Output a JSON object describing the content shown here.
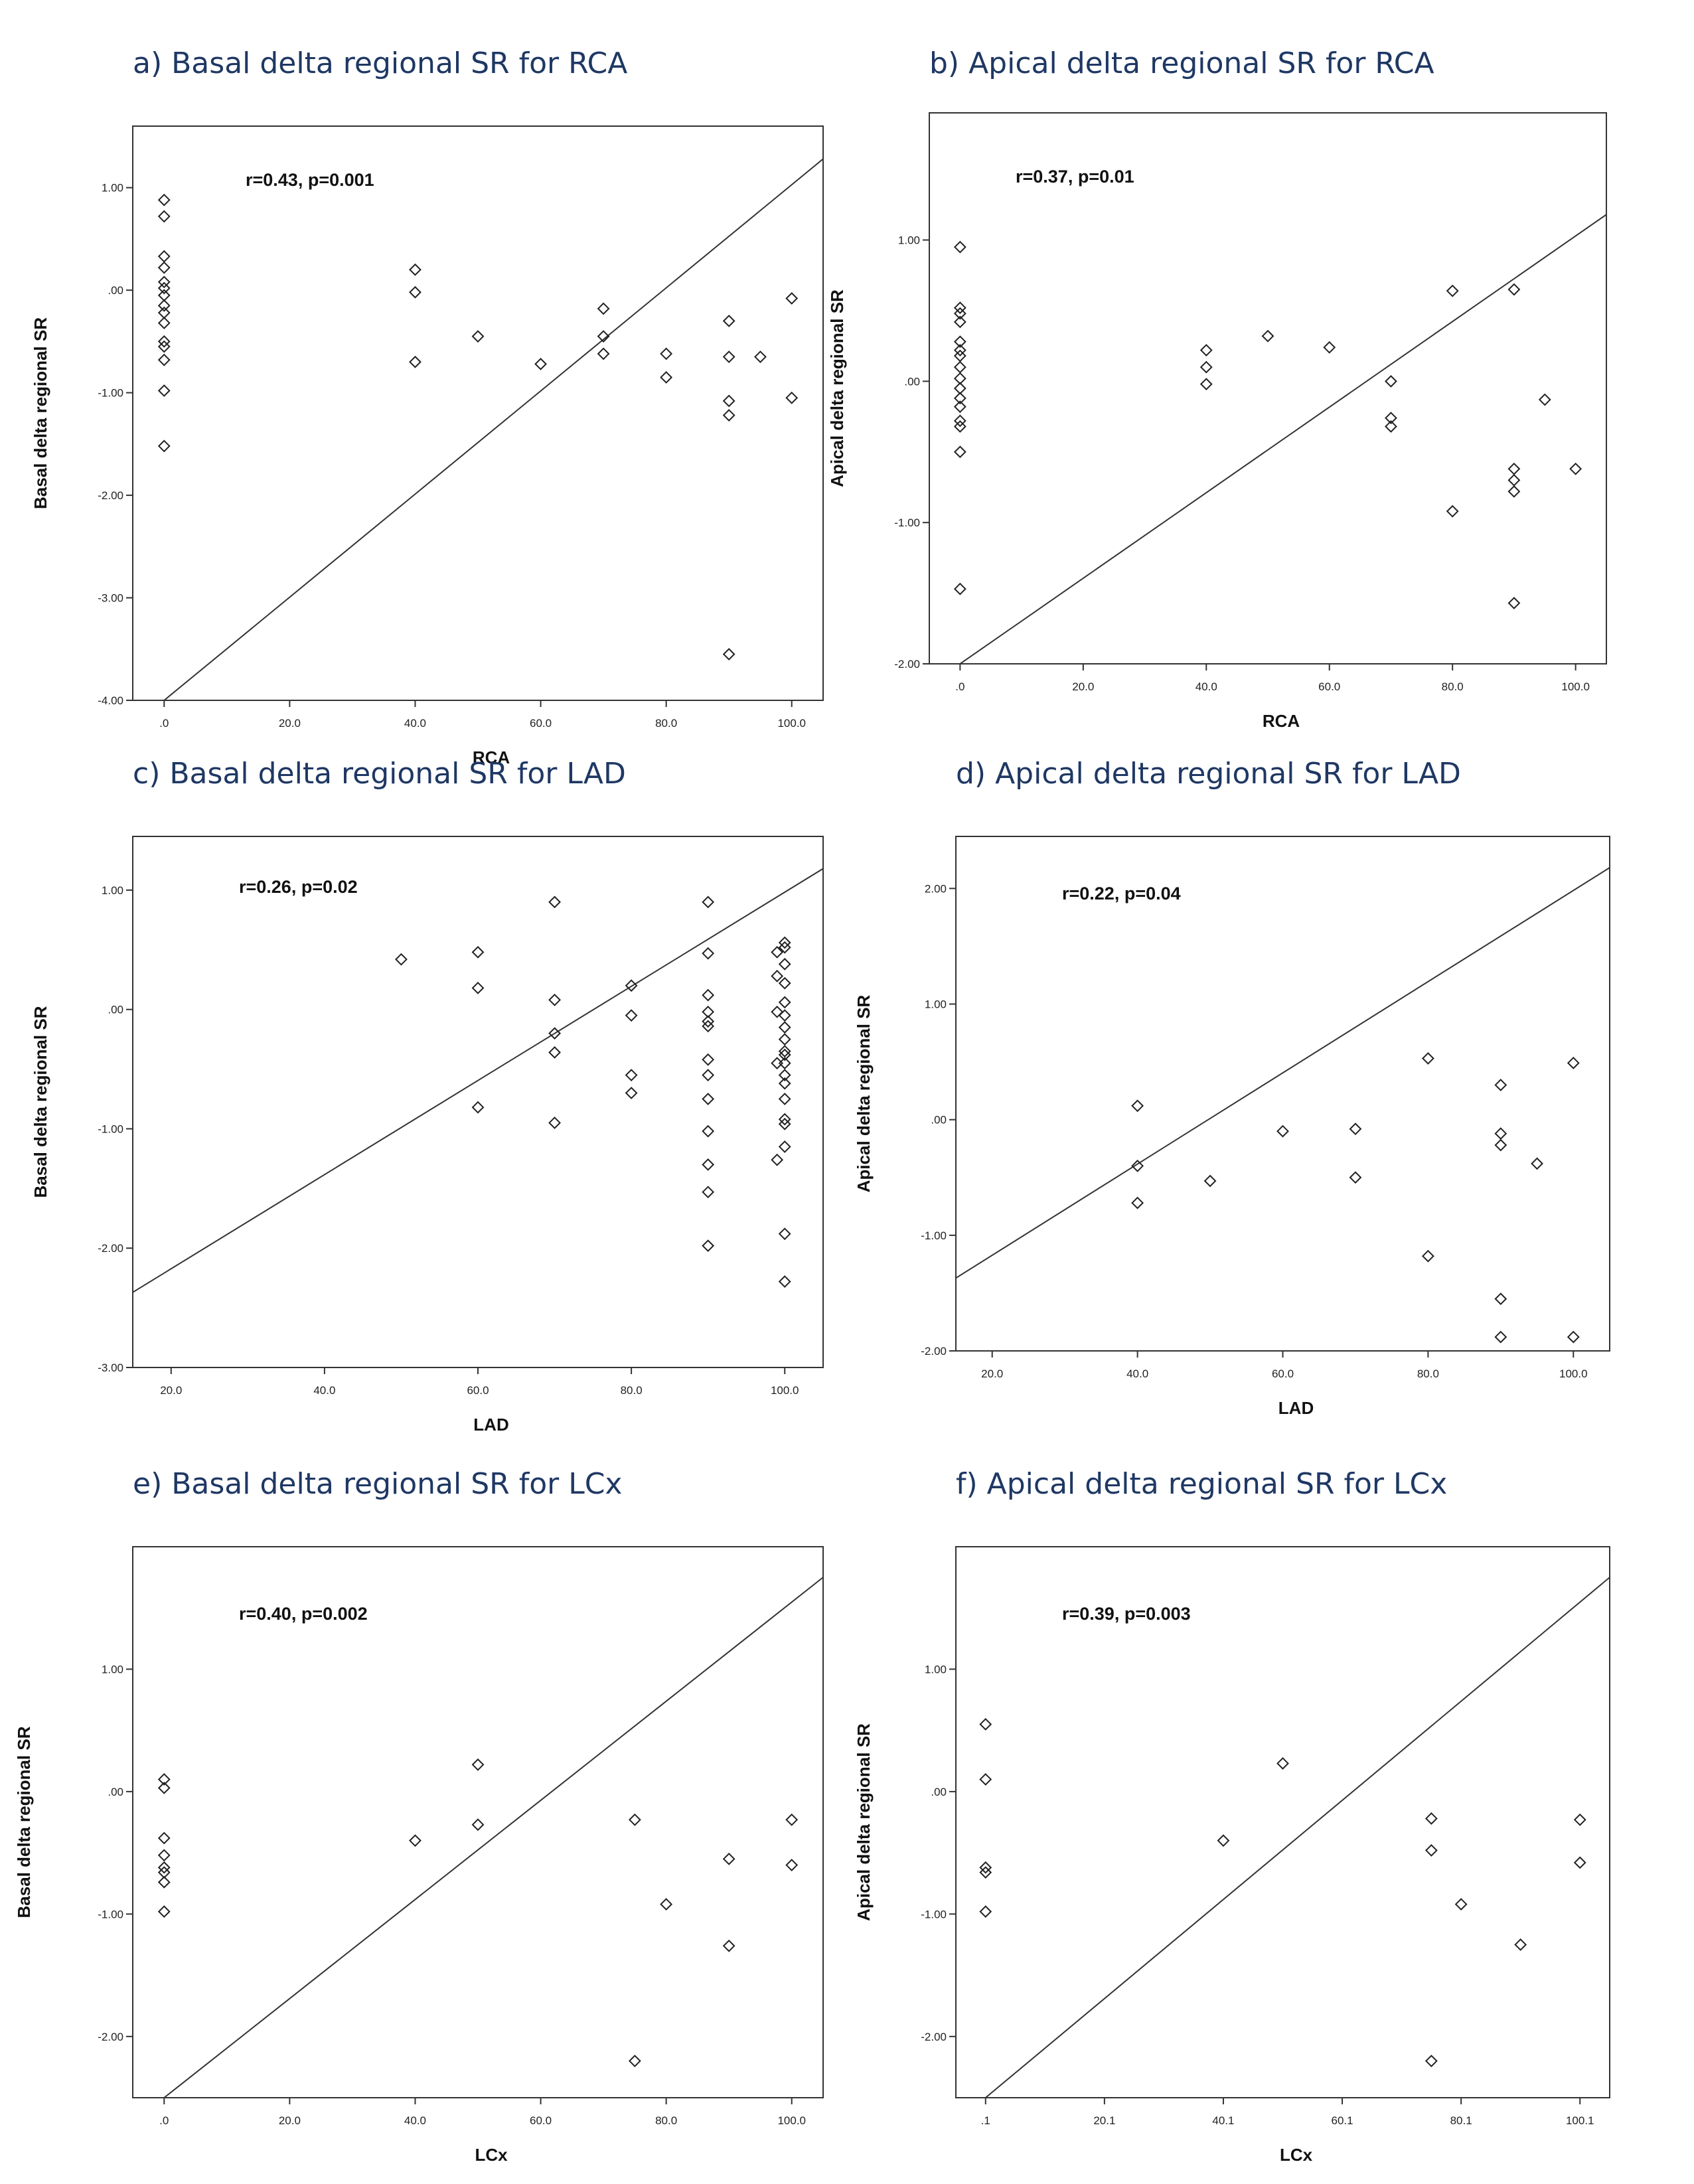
{
  "chart_data": [
    {
      "type": "scatter",
      "title": "a) Basal delta regional SR for RCA",
      "xlabel": "RCA",
      "ylabel": "Basal delta regional SR",
      "annotation": "r=0.43, p=0.001",
      "xlim": [
        -5,
        105
      ],
      "ylim": [
        -4.0,
        1.6
      ],
      "xticks": [
        0,
        20,
        40,
        60,
        80,
        100
      ],
      "xtick_labels": [
        ".0",
        "20.0",
        "40.0",
        "60.0",
        "80.0",
        "100.0"
      ],
      "yticks": [
        1,
        0,
        -1,
        -2,
        -3,
        -4
      ],
      "ytick_labels": [
        "1.00",
        ".00",
        "-1.00",
        "-2.00",
        "-3.00",
        "-4.00"
      ],
      "fit_line": [
        [
          0,
          -4.0
        ],
        [
          105,
          1.28
        ]
      ],
      "points": [
        [
          0,
          0.88
        ],
        [
          0,
          0.72
        ],
        [
          0,
          0.33
        ],
        [
          0,
          0.22
        ],
        [
          0,
          0.08
        ],
        [
          0,
          0.02
        ],
        [
          0,
          -0.05
        ],
        [
          0,
          -0.15
        ],
        [
          0,
          -0.22
        ],
        [
          0,
          -0.32
        ],
        [
          0,
          -0.5
        ],
        [
          0,
          -0.55
        ],
        [
          0,
          -0.68
        ],
        [
          0,
          -0.98
        ],
        [
          0,
          -1.52
        ],
        [
          40,
          0.2
        ],
        [
          40,
          -0.02
        ],
        [
          40,
          -0.7
        ],
        [
          50,
          -0.45
        ],
        [
          60,
          -0.72
        ],
        [
          70,
          -0.18
        ],
        [
          70,
          -0.45
        ],
        [
          70,
          -0.62
        ],
        [
          80,
          -0.62
        ],
        [
          80,
          -0.85
        ],
        [
          90,
          -0.3
        ],
        [
          90,
          -0.65
        ],
        [
          90,
          -1.08
        ],
        [
          90,
          -1.22
        ],
        [
          90,
          -3.55
        ],
        [
          95,
          -0.65
        ],
        [
          100,
          -0.08
        ],
        [
          100,
          -1.05
        ]
      ]
    },
    {
      "type": "scatter",
      "title": "b) Apical delta regional SR for RCA",
      "xlabel": "RCA",
      "ylabel": "Apical delta regional SR",
      "annotation": "r=0.37, p=0.01",
      "xlim": [
        -5,
        105
      ],
      "ylim": [
        -2.0,
        1.9
      ],
      "xticks": [
        0,
        20,
        40,
        60,
        80,
        100
      ],
      "xtick_labels": [
        ".0",
        "20.0",
        "40.0",
        "60.0",
        "80.0",
        "100.0"
      ],
      "yticks": [
        1,
        0,
        -1,
        -2
      ],
      "ytick_labels": [
        "1.00",
        ".00",
        "-1.00",
        "-2.00"
      ],
      "fit_line": [
        [
          0,
          -2.0
        ],
        [
          105,
          1.18
        ]
      ],
      "points": [
        [
          0,
          0.95
        ],
        [
          0,
          0.52
        ],
        [
          0,
          0.48
        ],
        [
          0,
          0.42
        ],
        [
          0,
          0.28
        ],
        [
          0,
          0.22
        ],
        [
          0,
          0.18
        ],
        [
          0,
          0.1
        ],
        [
          0,
          0.02
        ],
        [
          0,
          -0.05
        ],
        [
          0,
          -0.12
        ],
        [
          0,
          -0.18
        ],
        [
          0,
          -0.28
        ],
        [
          0,
          -0.32
        ],
        [
          0,
          -0.5
        ],
        [
          0,
          -1.47
        ],
        [
          40,
          0.22
        ],
        [
          40,
          0.1
        ],
        [
          40,
          -0.02
        ],
        [
          50,
          0.32
        ],
        [
          60,
          0.24
        ],
        [
          70,
          0.0
        ],
        [
          70,
          -0.26
        ],
        [
          70,
          -0.32
        ],
        [
          80,
          0.64
        ],
        [
          80,
          -0.92
        ],
        [
          90,
          0.65
        ],
        [
          90,
          -0.62
        ],
        [
          90,
          -0.7
        ],
        [
          90,
          -0.78
        ],
        [
          90,
          -1.57
        ],
        [
          95,
          -0.13
        ],
        [
          100,
          -0.62
        ]
      ]
    },
    {
      "type": "scatter",
      "title": "c) Basal delta regional SR for LAD",
      "xlabel": "LAD",
      "ylabel": "Basal delta regional SR",
      "annotation": "r=0.26, p=0.02",
      "xlim": [
        15,
        105
      ],
      "ylim": [
        -3.0,
        1.45
      ],
      "xticks": [
        20,
        40,
        60,
        80,
        100
      ],
      "xtick_labels": [
        "20.0",
        "40.0",
        "60.0",
        "80.0",
        "100.0"
      ],
      "yticks": [
        1,
        0,
        -1,
        -2,
        -3
      ],
      "ytick_labels": [
        "1.00",
        ".00",
        "-1.00",
        "-2.00",
        "-3.00"
      ],
      "fit_line": [
        [
          15,
          -2.37
        ],
        [
          105,
          1.18
        ]
      ],
      "points": [
        [
          50,
          0.42
        ],
        [
          60,
          0.48
        ],
        [
          60,
          0.18
        ],
        [
          60,
          -0.82
        ],
        [
          70,
          0.9
        ],
        [
          70,
          0.08
        ],
        [
          70,
          -0.2
        ],
        [
          70,
          -0.36
        ],
        [
          70,
          -0.95
        ],
        [
          80,
          0.2
        ],
        [
          80,
          -0.05
        ],
        [
          80,
          -0.55
        ],
        [
          80,
          -0.7
        ],
        [
          90,
          0.9
        ],
        [
          90,
          0.47
        ],
        [
          90,
          0.12
        ],
        [
          90,
          -0.02
        ],
        [
          90,
          -0.1
        ],
        [
          90,
          -0.14
        ],
        [
          90,
          -0.42
        ],
        [
          90,
          -0.55
        ],
        [
          90,
          -0.75
        ],
        [
          90,
          -1.02
        ],
        [
          90,
          -1.3
        ],
        [
          90,
          -1.53
        ],
        [
          90,
          -1.98
        ],
        [
          99,
          0.48
        ],
        [
          99,
          0.28
        ],
        [
          99,
          -0.02
        ],
        [
          99,
          -0.45
        ],
        [
          99,
          -1.26
        ],
        [
          100,
          0.56
        ],
        [
          100,
          0.52
        ],
        [
          100,
          0.38
        ],
        [
          100,
          0.22
        ],
        [
          100,
          0.06
        ],
        [
          100,
          -0.05
        ],
        [
          100,
          -0.15
        ],
        [
          100,
          -0.25
        ],
        [
          100,
          -0.35
        ],
        [
          100,
          -0.38
        ],
        [
          100,
          -0.45
        ],
        [
          100,
          -0.55
        ],
        [
          100,
          -0.62
        ],
        [
          100,
          -0.75
        ],
        [
          100,
          -0.92
        ],
        [
          100,
          -0.96
        ],
        [
          100,
          -1.15
        ],
        [
          100,
          -1.88
        ],
        [
          100,
          -2.28
        ]
      ]
    },
    {
      "type": "scatter",
      "title": "d) Apical delta regional SR for LAD",
      "xlabel": "LAD",
      "ylabel": "Apical delta regional SR",
      "annotation": "r=0.22, p=0.04",
      "xlim": [
        15,
        105
      ],
      "ylim": [
        -2.0,
        2.45
      ],
      "xticks": [
        20,
        40,
        60,
        80,
        100
      ],
      "xtick_labels": [
        "20.0",
        "40.0",
        "60.0",
        "80.0",
        "100.0"
      ],
      "yticks": [
        2,
        1,
        0,
        -1,
        -2
      ],
      "ytick_labels": [
        "2.00",
        "1.00",
        ".00",
        "-1.00",
        "-2.00"
      ],
      "fit_line": [
        [
          15,
          -1.37
        ],
        [
          105,
          2.18
        ]
      ],
      "points": [
        [
          40,
          0.12
        ],
        [
          40,
          -0.4
        ],
        [
          40,
          -0.72
        ],
        [
          50,
          -0.53
        ],
        [
          60,
          -0.1
        ],
        [
          70,
          -0.08
        ],
        [
          70,
          -0.5
        ],
        [
          80,
          0.53
        ],
        [
          80,
          -1.18
        ],
        [
          90,
          0.3
        ],
        [
          90,
          -0.12
        ],
        [
          90,
          -0.22
        ],
        [
          90,
          -1.55
        ],
        [
          90,
          -1.88
        ],
        [
          95,
          -0.38
        ],
        [
          100,
          0.49
        ],
        [
          100,
          -1.88
        ]
      ]
    },
    {
      "type": "scatter",
      "title": "e) Basal delta regional SR for LCx",
      "xlabel": "LCx",
      "ylabel": "Basal delta regional SR",
      "annotation": "r=0.40, p=0.002",
      "xlim": [
        -5,
        105
      ],
      "ylim": [
        -2.5,
        2.0
      ],
      "xticks": [
        0,
        20,
        40,
        60,
        80,
        100
      ],
      "xtick_labels": [
        ".0",
        "20.0",
        "40.0",
        "60.0",
        "80.0",
        "100.0"
      ],
      "yticks": [
        1,
        0,
        -1,
        -2
      ],
      "ytick_labels": [
        "1.00",
        ".00",
        "-1.00",
        "-2.00"
      ],
      "fit_line": [
        [
          0,
          -2.5
        ],
        [
          105,
          1.75
        ]
      ],
      "points": [
        [
          0,
          0.1
        ],
        [
          0,
          0.03
        ],
        [
          0,
          -0.38
        ],
        [
          0,
          -0.52
        ],
        [
          0,
          -0.62
        ],
        [
          0,
          -0.66
        ],
        [
          0,
          -0.74
        ],
        [
          0,
          -0.98
        ],
        [
          40,
          -0.4
        ],
        [
          50,
          0.22
        ],
        [
          50,
          -0.27
        ],
        [
          75,
          -0.23
        ],
        [
          75,
          -2.2
        ],
        [
          80,
          -0.92
        ],
        [
          90,
          -0.55
        ],
        [
          90,
          -1.26
        ],
        [
          100,
          -0.23
        ],
        [
          100,
          -0.6
        ]
      ]
    },
    {
      "type": "scatter",
      "title": "f) Apical delta regional SR for LCx",
      "xlabel": "LCx",
      "ylabel": "Apical delta regional SR",
      "annotation": "r=0.39, p=0.003",
      "xlim": [
        -4.9,
        105.1
      ],
      "ylim": [
        -2.5,
        2.0
      ],
      "xticks": [
        0.1,
        20.1,
        40.1,
        60.1,
        80.1,
        100.1
      ],
      "xtick_labels": [
        ".1",
        "20.1",
        "40.1",
        "60.1",
        "80.1",
        "100.1"
      ],
      "yticks": [
        1,
        0,
        -1,
        -2
      ],
      "ytick_labels": [
        "1.00",
        ".00",
        "-1.00",
        "-2.00"
      ],
      "fit_line": [
        [
          0.1,
          -2.5
        ],
        [
          105.1,
          1.75
        ]
      ],
      "points": [
        [
          0.1,
          0.55
        ],
        [
          0.1,
          0.1
        ],
        [
          0.1,
          -0.62
        ],
        [
          0.1,
          -0.66
        ],
        [
          0.1,
          -0.98
        ],
        [
          40.1,
          -0.4
        ],
        [
          50.1,
          0.23
        ],
        [
          75.1,
          -0.22
        ],
        [
          75.1,
          -0.48
        ],
        [
          75.1,
          -2.2
        ],
        [
          80.1,
          -0.92
        ],
        [
          90.1,
          -1.25
        ],
        [
          100.1,
          -0.23
        ],
        [
          100.1,
          -0.58
        ]
      ]
    }
  ]
}
